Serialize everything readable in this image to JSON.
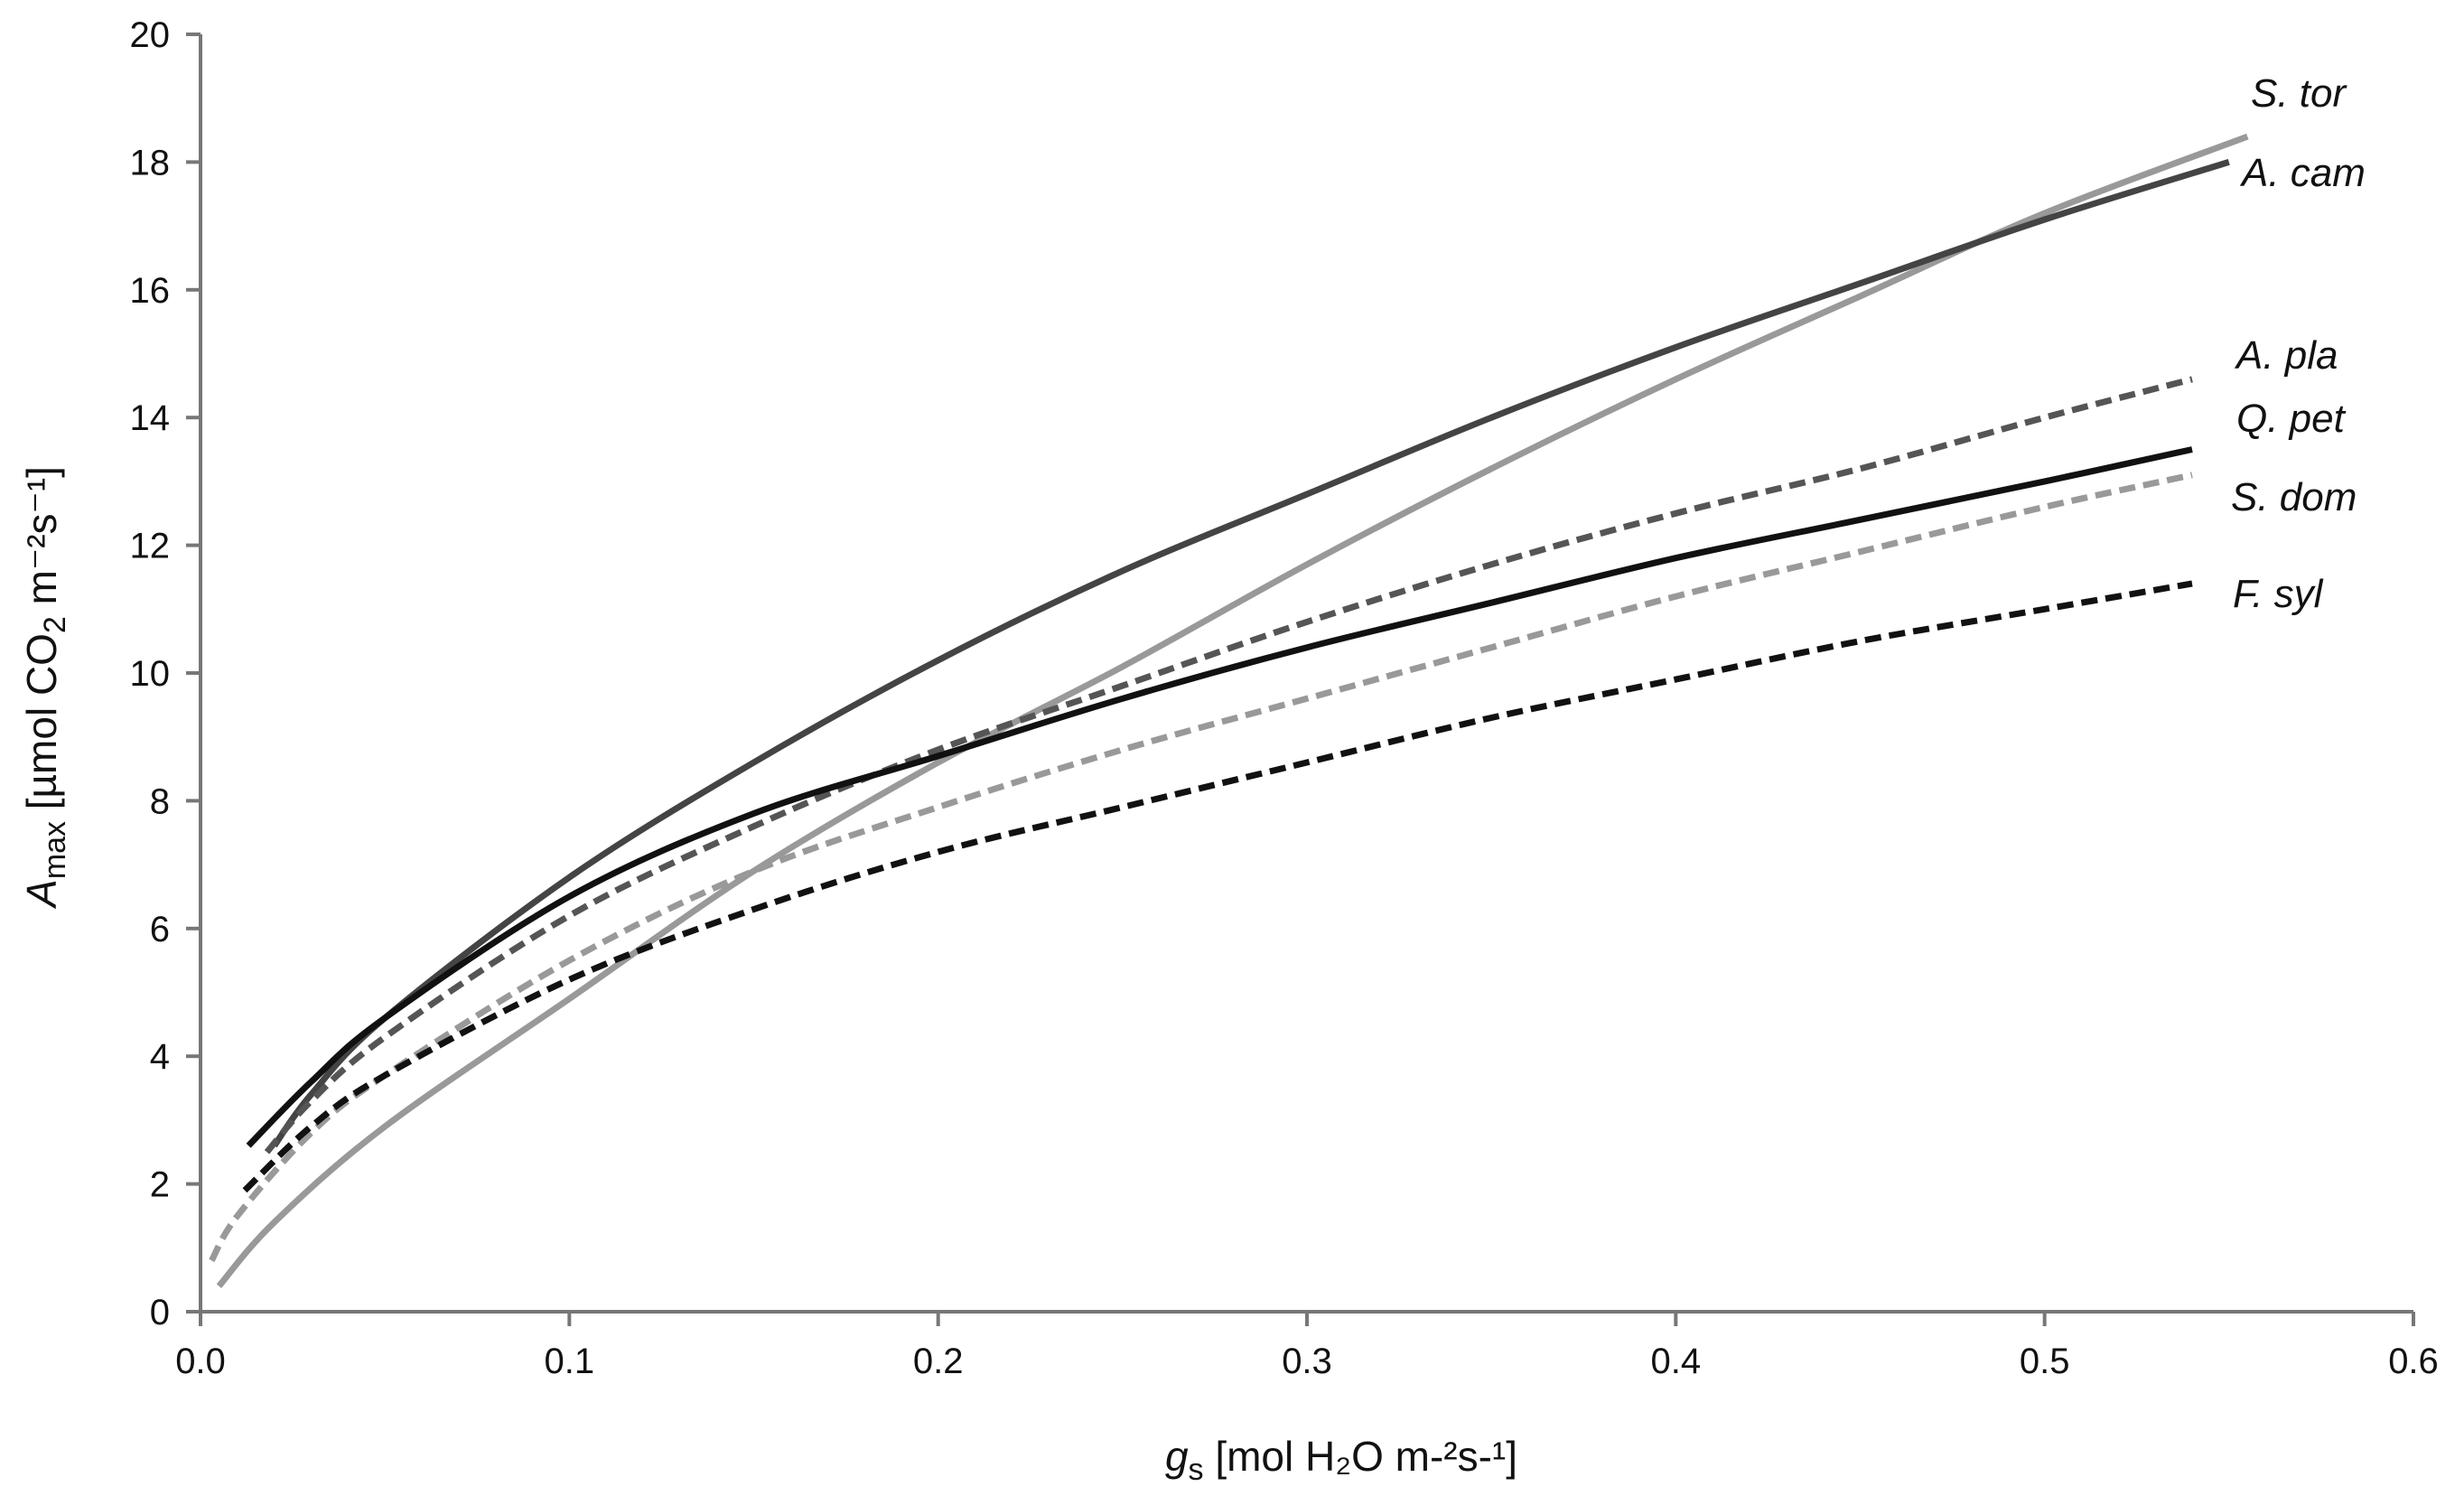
{
  "chart_data": {
    "type": "line",
    "title": "",
    "xlabel": {
      "symbol": "g",
      "subscript": "s",
      "text": " [mol H₂O m-²s-¹]"
    },
    "ylabel": {
      "symbol": "A",
      "subscript": "max",
      "text_before_sub": " [µmol CO",
      "sub2": "2",
      "text_after_sub": " m⁻²s⁻¹]"
    },
    "xlim": [
      0,
      0.6
    ],
    "ylim": [
      0,
      20
    ],
    "x_ticks": [
      "0.0",
      "0.1",
      "0.2",
      "0.3",
      "0.4",
      "0.5",
      "0.6"
    ],
    "y_ticks": [
      "0",
      "2",
      "4",
      "6",
      "8",
      "10",
      "12",
      "14",
      "16",
      "18",
      "20"
    ],
    "grid": false,
    "legend": "inline labels at right end of each curve",
    "series": [
      {
        "name": "S. tor",
        "color": "#999999",
        "dashed": false,
        "x": [
          0.005,
          0.02,
          0.05,
          0.1,
          0.15,
          0.2,
          0.25,
          0.3,
          0.35,
          0.4,
          0.45,
          0.5,
          0.555
        ],
        "y": [
          0.4,
          1.4,
          2.9,
          4.9,
          6.9,
          8.6,
          10.1,
          11.7,
          13.2,
          14.6,
          15.9,
          17.2,
          18.4
        ]
      },
      {
        "name": "A. cam",
        "color": "#444444",
        "dashed": false,
        "x": [
          0.02,
          0.03,
          0.05,
          0.1,
          0.15,
          0.2,
          0.25,
          0.3,
          0.35,
          0.4,
          0.45,
          0.5,
          0.55
        ],
        "y": [
          2.6,
          3.4,
          4.6,
          6.8,
          8.6,
          10.2,
          11.6,
          12.8,
          14.0,
          15.1,
          16.1,
          17.1,
          18.0
        ]
      },
      {
        "name": "A. pla",
        "color": "#555555",
        "dashed": true,
        "x": [
          0.018,
          0.03,
          0.05,
          0.1,
          0.15,
          0.2,
          0.25,
          0.3,
          0.35,
          0.4,
          0.45,
          0.5,
          0.54
        ],
        "y": [
          2.5,
          3.3,
          4.3,
          6.2,
          7.6,
          8.8,
          9.8,
          10.8,
          11.7,
          12.5,
          13.2,
          14.0,
          14.6
        ]
      },
      {
        "name": "Q. pet",
        "color": "#111111",
        "dashed": false,
        "x": [
          0.013,
          0.03,
          0.05,
          0.1,
          0.15,
          0.2,
          0.25,
          0.3,
          0.35,
          0.4,
          0.45,
          0.5,
          0.54
        ],
        "y": [
          2.6,
          3.6,
          4.6,
          6.5,
          7.8,
          8.7,
          9.6,
          10.4,
          11.1,
          11.8,
          12.4,
          13.0,
          13.5
        ]
      },
      {
        "name": "S. dom",
        "color": "#999999",
        "dashed": true,
        "x": [
          0.003,
          0.01,
          0.03,
          0.05,
          0.1,
          0.15,
          0.2,
          0.25,
          0.3,
          0.35,
          0.4,
          0.45,
          0.5,
          0.54
        ],
        "y": [
          0.8,
          1.5,
          2.8,
          3.7,
          5.5,
          6.9,
          7.9,
          8.8,
          9.6,
          10.4,
          11.2,
          11.9,
          12.6,
          13.1
        ]
      },
      {
        "name": "F. syl",
        "color": "#111111",
        "dashed": true,
        "x": [
          0.012,
          0.03,
          0.05,
          0.1,
          0.15,
          0.2,
          0.25,
          0.3,
          0.35,
          0.4,
          0.45,
          0.5,
          0.54
        ],
        "y": [
          1.9,
          2.9,
          3.7,
          5.2,
          6.3,
          7.2,
          7.9,
          8.6,
          9.3,
          9.9,
          10.5,
          11.0,
          11.4
        ]
      }
    ]
  }
}
